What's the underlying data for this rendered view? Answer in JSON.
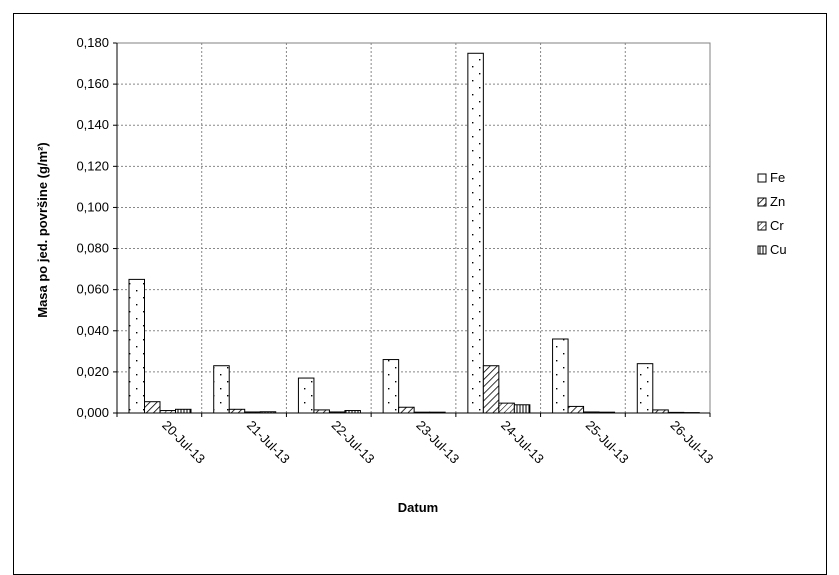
{
  "chart_data": {
    "type": "bar",
    "categories": [
      "20-Jul-13",
      "21-Jul-13",
      "22-Jul-13",
      "23-Jul-13",
      "24-Jul-13",
      "25-Jul-13",
      "26-Jul-13"
    ],
    "series": [
      {
        "name": "Fe",
        "values": [
          0.065,
          0.023,
          0.017,
          0.026,
          0.175,
          0.036,
          0.024
        ]
      },
      {
        "name": "Zn",
        "values": [
          0.0055,
          0.0018,
          0.0015,
          0.0028,
          0.023,
          0.0032,
          0.0015
        ]
      },
      {
        "name": "Cr",
        "values": [
          0.0012,
          0.0005,
          0.0005,
          0.0004,
          0.0048,
          0.0005,
          0.0003
        ]
      },
      {
        "name": "Cu",
        "values": [
          0.0018,
          0.0006,
          0.0012,
          0.0004,
          0.004,
          0.0004,
          0.0002
        ]
      }
    ],
    "xlabel": "Datum",
    "ylabel": "Masa po jed. površine (g/m²)",
    "ylim": [
      0,
      0.18
    ],
    "yticks": [
      "0,000",
      "0,020",
      "0,040",
      "0,060",
      "0,080",
      "0,100",
      "0,120",
      "0,140",
      "0,160",
      "0,180"
    ],
    "grid": true,
    "legend": "right",
    "fill_patterns": [
      "dots",
      "diagonal-dense",
      "diagonal-sparse",
      "vertical-stripes"
    ]
  }
}
